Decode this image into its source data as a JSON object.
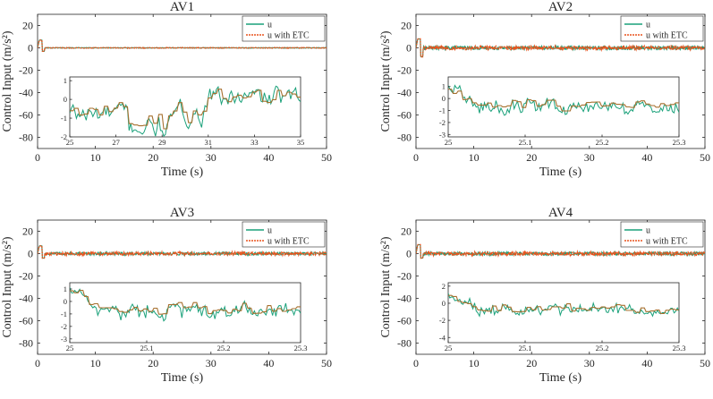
{
  "figure": {
    "colors": {
      "u": "#1aa17a",
      "u_etc": "#e8541e",
      "overlap": "#a7702f",
      "axis": "#262626"
    },
    "legend_entries": [
      "u",
      "u with ETC"
    ]
  },
  "chart_data": [
    {
      "type": "line",
      "title": "AV1",
      "xlabel": "Time (s)",
      "ylabel": "Control Input (m/s²)",
      "xlim": [
        0,
        50
      ],
      "ylim": [
        -90,
        30
      ],
      "xticks": [
        "0",
        "10",
        "20",
        "30",
        "40",
        "50"
      ],
      "yticks": [
        "20",
        "0",
        "-20",
        "-40",
        "-60",
        "-80"
      ],
      "legend": {
        "position": "top-right",
        "entries": [
          "u",
          "u with ETC"
        ]
      },
      "main_series": [
        {
          "name": "u",
          "initial_spike": 7,
          "initial_dip": -3,
          "steady_noise": 0.3
        },
        {
          "name": "u with ETC",
          "initial_spike": 7,
          "initial_dip": -3,
          "steady_noise": 0.3
        }
      ],
      "inset": {
        "xlim": [
          25,
          35
        ],
        "ylim": [
          -2,
          1.2
        ],
        "xticks": [
          "25",
          "27",
          "29",
          "31",
          "33",
          "35"
        ],
        "yticks": [
          "1",
          "0",
          "-1",
          "-2"
        ],
        "series": [
          {
            "name": "u",
            "noise": 0.25
          },
          {
            "name": "u with ETC",
            "noise": 0.2
          }
        ]
      }
    },
    {
      "type": "line",
      "title": "AV2",
      "xlabel": "Time (s)",
      "ylabel": "Control Input (m/s²)",
      "xlim": [
        0,
        50
      ],
      "ylim": [
        -90,
        30
      ],
      "xticks": [
        "0",
        "10",
        "20",
        "30",
        "40",
        "50"
      ],
      "yticks": [
        "20",
        "0",
        "-20",
        "-40",
        "-60",
        "-80"
      ],
      "legend": {
        "position": "top-right",
        "entries": [
          "u",
          "u with ETC"
        ]
      },
      "main_series": [
        {
          "name": "u",
          "initial_spike": 8,
          "initial_dip": -8,
          "steady_noise": 1.6
        },
        {
          "name": "u with ETC",
          "initial_spike": 8,
          "initial_dip": -8,
          "steady_noise": 1.6
        }
      ],
      "inset": {
        "xlim": [
          25,
          25.3
        ],
        "ylim": [
          -3.2,
          1.8
        ],
        "xticks": [
          "25",
          "25.1",
          "25.2",
          "25.3"
        ],
        "yticks": [
          "1",
          "0",
          "-1",
          "-2",
          "-3"
        ],
        "series": [
          {
            "name": "u",
            "noise": 0.55
          },
          {
            "name": "u with ETC",
            "noise": 0.4
          }
        ]
      }
    },
    {
      "type": "line",
      "title": "AV3",
      "xlabel": "Time (s)",
      "ylabel": "Control Input (m/s²)",
      "xlim": [
        0,
        50
      ],
      "ylim": [
        -90,
        30
      ],
      "xticks": [
        "0",
        "10",
        "20",
        "30",
        "40",
        "50"
      ],
      "yticks": [
        "20",
        "0",
        "-20",
        "-40",
        "-60",
        "-80"
      ],
      "legend": {
        "position": "top-right",
        "entries": [
          "u",
          "u with ETC"
        ]
      },
      "main_series": [
        {
          "name": "u",
          "initial_spike": 7,
          "initial_dip": -4,
          "steady_noise": 1.3
        },
        {
          "name": "u with ETC",
          "initial_spike": 7,
          "initial_dip": -4,
          "steady_noise": 1.3
        }
      ],
      "inset": {
        "xlim": [
          25,
          25.3
        ],
        "ylim": [
          -3.3,
          1.5
        ],
        "xticks": [
          "25",
          "25.1",
          "25.2",
          "25.3"
        ],
        "yticks": [
          "1",
          "0",
          "-1",
          "-2",
          "-3"
        ],
        "series": [
          {
            "name": "u",
            "noise": 0.7
          },
          {
            "name": "u with ETC",
            "noise": 0.55
          }
        ]
      }
    },
    {
      "type": "line",
      "title": "AV4",
      "xlabel": "Time (s)",
      "ylabel": "Control Input (m/s²)",
      "xlim": [
        0,
        50
      ],
      "ylim": [
        -90,
        30
      ],
      "xticks": [
        "0",
        "10",
        "20",
        "30",
        "40",
        "50"
      ],
      "yticks": [
        "20",
        "0",
        "-20",
        "-40",
        "-60",
        "-80"
      ],
      "legend": {
        "position": "top-right",
        "entries": [
          "u",
          "u with ETC"
        ]
      },
      "main_series": [
        {
          "name": "u",
          "initial_spike": 8,
          "initial_dip": -4,
          "steady_noise": 1.5
        },
        {
          "name": "u with ETC",
          "initial_spike": 8,
          "initial_dip": -4,
          "steady_noise": 1.5
        }
      ],
      "inset": {
        "xlim": [
          25,
          25.3
        ],
        "ylim": [
          -4.6,
          2.4
        ],
        "xticks": [
          "25",
          "25.1",
          "25.2",
          "25.3"
        ],
        "yticks": [
          "2",
          "0",
          "-2",
          "-4"
        ],
        "series": [
          {
            "name": "u",
            "noise": 0.9
          },
          {
            "name": "u with ETC",
            "noise": 0.75
          }
        ]
      }
    }
  ]
}
